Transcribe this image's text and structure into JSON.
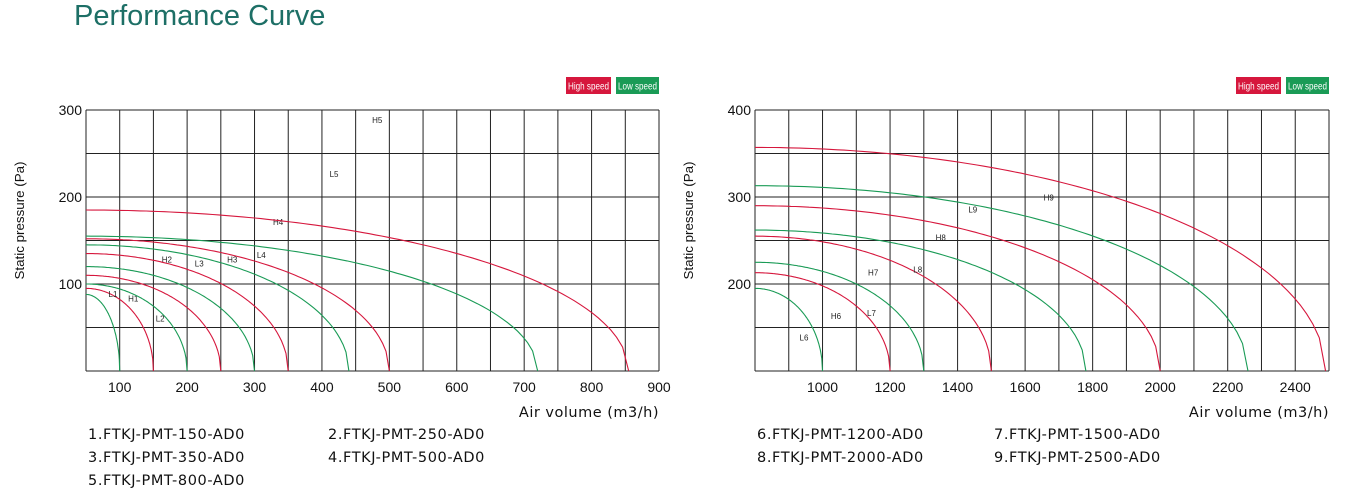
{
  "title": "Performance Curve",
  "colors": {
    "title": "#1d6f66",
    "high": "#d6173d",
    "low": "#1a9b56",
    "grid": "#222222"
  },
  "chart_data": [
    {
      "type": "line",
      "ylabel": "Static pressure (Pa)",
      "xlabel": "Air volume (m3/h)",
      "xlim": [
        50,
        900
      ],
      "ylim": [
        0,
        300
      ],
      "xticks": [
        100,
        200,
        300,
        400,
        500,
        600,
        700,
        800,
        900
      ],
      "yticks": [
        100,
        200,
        300
      ],
      "legend": [
        "High speed",
        "Low speed"
      ],
      "legend_position": "top-right",
      "models": [
        "1.FTKJ-PMT-150-AD0",
        "2.FTKJ-PMT-250-AD0",
        "3.FTKJ-PMT-350-AD0",
        "4.FTKJ-PMT-500-AD0",
        "5.FTKJ-PMT-800-AD0"
      ],
      "series": [
        {
          "name": "H1",
          "speed": "high",
          "y0": 95,
          "xmax": 150,
          "label_at": [
            120,
            80
          ]
        },
        {
          "name": "L1",
          "speed": "low",
          "y0": 88,
          "xmax": 100,
          "label_at": [
            90,
            85
          ]
        },
        {
          "name": "L2",
          "speed": "low",
          "y0": 100,
          "xmax": 200,
          "label_at": [
            160,
            57
          ]
        },
        {
          "name": "H2",
          "speed": "high",
          "y0": 110,
          "xmax": 250,
          "label_at": [
            170,
            125
          ]
        },
        {
          "name": "L3",
          "speed": "low",
          "y0": 120,
          "xmax": 300,
          "label_at": [
            218,
            120
          ]
        },
        {
          "name": "H3",
          "speed": "high",
          "y0": 135,
          "xmax": 350,
          "label_at": [
            267,
            125
          ]
        },
        {
          "name": "L4",
          "speed": "low",
          "y0": 145,
          "xmax": 440,
          "label_at": [
            310,
            130
          ]
        },
        {
          "name": "H4",
          "speed": "high",
          "y0": 152,
          "xmax": 500,
          "label_at": [
            335,
            168
          ]
        },
        {
          "name": "L5",
          "speed": "low",
          "y0": 155,
          "xmax": 720,
          "label_at": [
            418,
            223
          ]
        },
        {
          "name": "H5",
          "speed": "high",
          "y0": 185,
          "xmax": 855,
          "label_at": [
            482,
            285
          ]
        }
      ]
    },
    {
      "type": "line",
      "ylabel": "Static pressure (Pa)",
      "xlabel": "Air volume (m3/h)",
      "xlim": [
        800,
        2500
      ],
      "ylim": [
        100,
        400
      ],
      "xticks": [
        1000,
        1200,
        1400,
        1600,
        1800,
        2000,
        2200,
        2400
      ],
      "yticks": [
        200,
        300,
        400
      ],
      "legend": [
        "High speed",
        "Low speed"
      ],
      "legend_position": "top-right",
      "models": [
        "6.FTKJ-PMT-1200-AD0",
        "7.FTKJ-PMT-1500-AD0",
        "8.FTKJ-PMT-2000-AD0",
        "9.FTKJ-PMT-2500-AD0"
      ],
      "series": [
        {
          "name": "L6",
          "speed": "low",
          "y0": 195,
          "xmax": 1000,
          "label_at": [
            945,
            135
          ]
        },
        {
          "name": "H6",
          "speed": "high",
          "y0": 213,
          "xmax": 1200,
          "label_at": [
            1040,
            160
          ]
        },
        {
          "name": "L7",
          "speed": "low",
          "y0": 225,
          "xmax": 1300,
          "label_at": [
            1145,
            163
          ]
        },
        {
          "name": "H7",
          "speed": "high",
          "y0": 255,
          "xmax": 1500,
          "label_at": [
            1150,
            210
          ]
        },
        {
          "name": "L8",
          "speed": "low",
          "y0": 262,
          "xmax": 1780,
          "label_at": [
            1282,
            213
          ]
        },
        {
          "name": "H8",
          "speed": "high",
          "y0": 290,
          "xmax": 2000,
          "label_at": [
            1350,
            250
          ]
        },
        {
          "name": "L9",
          "speed": "low",
          "y0": 313,
          "xmax": 2260,
          "label_at": [
            1445,
            282
          ]
        },
        {
          "name": "H9",
          "speed": "high",
          "y0": 357,
          "xmax": 2490,
          "label_at": [
            1670,
            296
          ]
        }
      ]
    }
  ]
}
